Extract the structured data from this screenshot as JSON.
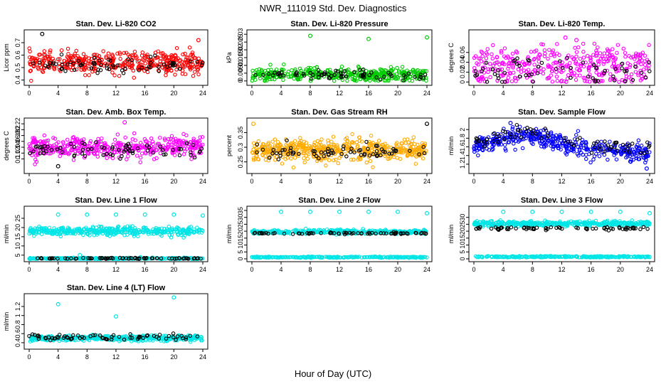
{
  "figure": {
    "title": "NWR_111019  Std. Dev. Diagnostics",
    "xlabel": "Hour of Day (UTC)"
  },
  "chart_data": [
    {
      "type": "scatter",
      "title": "Stan. Dev. Li-820 CO2",
      "ylabel": "Licor ppm",
      "xlim": [
        0,
        24
      ],
      "xticks": [
        0,
        4,
        8,
        12,
        16,
        20,
        24
      ],
      "ylim": [
        0.38,
        0.78
      ],
      "yticks": [
        0.4,
        0.5,
        0.6,
        0.7
      ],
      "color": "#ff0000",
      "series": [
        {
          "name": "",
          "color": "#ff0000",
          "center": 0.54,
          "spread": 0.06,
          "n": 420
        },
        {
          "name": "",
          "color": "#000000",
          "center": 0.52,
          "spread": 0.05,
          "n": 70
        }
      ],
      "outliers": [
        {
          "x": 1.8,
          "y": 0.77,
          "color": "#000000"
        },
        {
          "x": 23.4,
          "y": 0.72,
          "color": "#ff0000"
        }
      ]
    },
    {
      "type": "scatter",
      "title": "Stan. Dev. Li-820 Pressure",
      "ylabel": "kPa",
      "xlim": [
        0,
        24
      ],
      "xticks": [
        0,
        4,
        8,
        12,
        16,
        20,
        24
      ],
      "ylim": [
        -0.001,
        0.031
      ],
      "yticks": [
        0.0,
        0.005,
        0.01,
        0.015,
        0.02,
        0.025,
        0.03
      ],
      "color": "#00cc00",
      "series": [
        {
          "name": "",
          "color": "#00cc00",
          "center": 0.004,
          "spread": 0.003,
          "n": 420
        },
        {
          "name": "",
          "color": "#000000",
          "center": 0.004,
          "spread": 0.002,
          "n": 70
        }
      ],
      "outliers": [
        {
          "x": 8.0,
          "y": 0.029,
          "color": "#00cc00"
        },
        {
          "x": 16.0,
          "y": 0.027,
          "color": "#00cc00"
        },
        {
          "x": 24.0,
          "y": 0.028,
          "color": "#00cc00"
        }
      ]
    },
    {
      "type": "scatter",
      "title": "Stan. Dev. Li-820 Temp.",
      "ylabel": "degrees C",
      "xlim": [
        0,
        24
      ],
      "xticks": [
        0,
        4,
        8,
        12,
        16,
        20,
        24
      ],
      "ylim": [
        -0.001,
        0.1
      ],
      "yticks": [
        0.0,
        0.02,
        0.04,
        0.06
      ],
      "color": "#ff00ff",
      "series": [
        {
          "name": "",
          "color": "#ff00ff",
          "center": 0.03,
          "spread": 0.03,
          "n": 380
        },
        {
          "name": "",
          "color": "#000000",
          "center": 0.02,
          "spread": 0.02,
          "n": 60
        }
      ],
      "outliers": [
        {
          "x": 12.5,
          "y": 0.09,
          "color": "#ff00ff"
        },
        {
          "x": 14.0,
          "y": 0.085,
          "color": "#ff00ff"
        }
      ]
    },
    {
      "type": "scatter",
      "title": "Stan. Dev. Amb. Box Temp.",
      "ylabel": "degrees C",
      "xlim": [
        0,
        24
      ],
      "xticks": [
        0,
        4,
        8,
        12,
        16,
        20,
        24
      ],
      "ylim": [
        0.06,
        0.23
      ],
      "yticks": [
        0.1,
        0.12,
        0.14,
        0.16,
        0.18,
        0.2,
        0.22
      ],
      "color": "#ff00ff",
      "series": [
        {
          "name": "",
          "color": "#ff00ff",
          "center": 0.14,
          "spread": 0.025,
          "n": 420
        },
        {
          "name": "",
          "color": "#000000",
          "center": 0.13,
          "spread": 0.02,
          "n": 70
        }
      ],
      "outliers": [
        {
          "x": 4.0,
          "y": 0.075,
          "color": "#000000"
        },
        {
          "x": 13.2,
          "y": 0.225,
          "color": "#ff00ff"
        }
      ]
    },
    {
      "type": "scatter",
      "title": "Stan. Dev. Gas Stream RH",
      "ylabel": "percent",
      "xlim": [
        0,
        24
      ],
      "xticks": [
        0,
        4,
        8,
        12,
        16,
        20,
        24
      ],
      "ylim": [
        0.22,
        0.39
      ],
      "yticks": [
        0.25,
        0.3,
        0.35
      ],
      "color": "#ffaa00",
      "series": [
        {
          "name": "",
          "color": "#ffaa00",
          "center": 0.29,
          "spread": 0.025,
          "n": 520
        },
        {
          "name": "",
          "color": "#000000",
          "center": 0.285,
          "spread": 0.02,
          "n": 70
        }
      ],
      "outliers": [
        {
          "x": 0.2,
          "y": 0.38,
          "color": "#ffaa00"
        },
        {
          "x": 24.0,
          "y": 0.38,
          "color": "#000000"
        }
      ]
    },
    {
      "type": "scatter",
      "title": "Stan. Dev. Sample Flow",
      "ylabel": "ml/min",
      "xlim": [
        0,
        24
      ],
      "xticks": [
        0,
        4,
        8,
        12,
        16,
        20,
        24
      ],
      "ylim": [
        1.05,
        2.2
      ],
      "yticks": [
        1.2,
        1.4,
        1.6,
        1.8,
        2.0
      ],
      "color": "#0000ff",
      "series": [
        {
          "name": "",
          "color": "#0000ff",
          "center": 1.6,
          "spread": 0.15,
          "n": 420,
          "trend": "hump"
        },
        {
          "name": "",
          "color": "#000000",
          "center": 1.7,
          "spread": 0.12,
          "n": 70,
          "trend": "hump"
        }
      ],
      "outliers": [
        {
          "x": 5.0,
          "y": 2.15,
          "color": "#0000ff"
        },
        {
          "x": 23.6,
          "y": 1.1,
          "color": "#0000ff"
        }
      ]
    },
    {
      "type": "scatter",
      "title": "Stan. Dev. Line 1 Flow",
      "ylabel": "ml/min",
      "xlim": [
        0,
        24
      ],
      "xticks": [
        0,
        4,
        8,
        12,
        16,
        20,
        24
      ],
      "ylim": [
        3,
        30
      ],
      "yticks": [
        5,
        10,
        15,
        20,
        25
      ],
      "color": "#00e5e5",
      "series": [
        {
          "name": "",
          "color": "#00e5e5",
          "center": 18,
          "spread": 1.6,
          "n": 420
        },
        {
          "name": "",
          "color": "#00e5e5",
          "center": 3.2,
          "spread": 0.3,
          "n": 260
        },
        {
          "name": "",
          "color": "#000000",
          "center": 3.3,
          "spread": 0.2,
          "n": 70
        }
      ],
      "outliers": [
        {
          "x": 4.0,
          "y": 27,
          "color": "#00e5e5"
        },
        {
          "x": 8.0,
          "y": 27,
          "color": "#00e5e5"
        },
        {
          "x": 12.0,
          "y": 27,
          "color": "#00e5e5"
        },
        {
          "x": 16.0,
          "y": 27,
          "color": "#00e5e5"
        },
        {
          "x": 20.0,
          "y": 27,
          "color": "#00e5e5"
        },
        {
          "x": 24.0,
          "y": 26.5,
          "color": "#00e5e5"
        },
        {
          "x": 7.0,
          "y": 5.0,
          "color": "#00e5e5"
        }
      ]
    },
    {
      "type": "scatter",
      "title": "Stan. Dev. Line 2 Flow",
      "ylabel": "ml/min",
      "xlim": [
        0,
        24
      ],
      "xticks": [
        0,
        4,
        8,
        12,
        16,
        20,
        24
      ],
      "ylim": [
        0,
        36
      ],
      "yticks": [
        0,
        5,
        10,
        15,
        20,
        25,
        30,
        35
      ],
      "color": "#00e5e5",
      "series": [
        {
          "name": "",
          "color": "#00e5e5",
          "center": 19.5,
          "spread": 1.0,
          "n": 420
        },
        {
          "name": "",
          "color": "#00e5e5",
          "center": 1.2,
          "spread": 0.3,
          "n": 260
        },
        {
          "name": "",
          "color": "#000000",
          "center": 18.5,
          "spread": 0.4,
          "n": 70
        }
      ],
      "outliers": [
        {
          "x": 4.0,
          "y": 34,
          "color": "#00e5e5"
        },
        {
          "x": 8.0,
          "y": 34,
          "color": "#00e5e5"
        },
        {
          "x": 12.0,
          "y": 34,
          "color": "#00e5e5"
        },
        {
          "x": 16.0,
          "y": 34,
          "color": "#00e5e5"
        },
        {
          "x": 20.0,
          "y": 34,
          "color": "#00e5e5"
        },
        {
          "x": 24.0,
          "y": 33,
          "color": "#00e5e5"
        }
      ]
    },
    {
      "type": "scatter",
      "title": "Stan. Dev. Line 3 Flow",
      "ylabel": "ml/min",
      "xlim": [
        0,
        24
      ],
      "xticks": [
        0,
        4,
        8,
        12,
        16,
        20,
        24
      ],
      "ylim": [
        0,
        36
      ],
      "yticks": [
        0,
        5,
        10,
        15,
        20,
        25,
        30
      ],
      "color": "#00e5e5",
      "series": [
        {
          "name": "",
          "color": "#00e5e5",
          "center": 25.5,
          "spread": 1.2,
          "n": 420
        },
        {
          "name": "",
          "color": "#00e5e5",
          "center": 1.5,
          "spread": 0.4,
          "n": 260
        },
        {
          "name": "",
          "color": "#000000",
          "center": 22,
          "spread": 0.7,
          "n": 70
        }
      ],
      "outliers": [
        {
          "x": 4.0,
          "y": 34,
          "color": "#00e5e5"
        },
        {
          "x": 8.0,
          "y": 34,
          "color": "#00e5e5"
        },
        {
          "x": 12.0,
          "y": 34,
          "color": "#00e5e5"
        },
        {
          "x": 16.0,
          "y": 34,
          "color": "#00e5e5"
        },
        {
          "x": 20.0,
          "y": 34,
          "color": "#00e5e5"
        },
        {
          "x": 24.0,
          "y": 33,
          "color": "#00e5e5"
        }
      ]
    },
    {
      "type": "scatter",
      "title": "Stan. Dev. Line 4 (LT) Flow",
      "ylabel": "ml/min",
      "xlim": [
        0,
        24
      ],
      "xticks": [
        0,
        4,
        8,
        12,
        16,
        20,
        24
      ],
      "ylim": [
        0.32,
        1.42
      ],
      "yticks": [
        0.4,
        0.6,
        0.8,
        1.0,
        1.2
      ],
      "color": "#00e5e5",
      "series": [
        {
          "name": "",
          "color": "#00e5e5",
          "center": 0.5,
          "spread": 0.04,
          "n": 420
        },
        {
          "name": "",
          "color": "#000000",
          "center": 0.52,
          "spread": 0.05,
          "n": 70
        }
      ],
      "outliers": [
        {
          "x": 4.0,
          "y": 1.25,
          "color": "#00e5e5"
        },
        {
          "x": 12.0,
          "y": 0.98,
          "color": "#00e5e5"
        },
        {
          "x": 20.0,
          "y": 1.4,
          "color": "#00e5e5"
        }
      ]
    }
  ]
}
